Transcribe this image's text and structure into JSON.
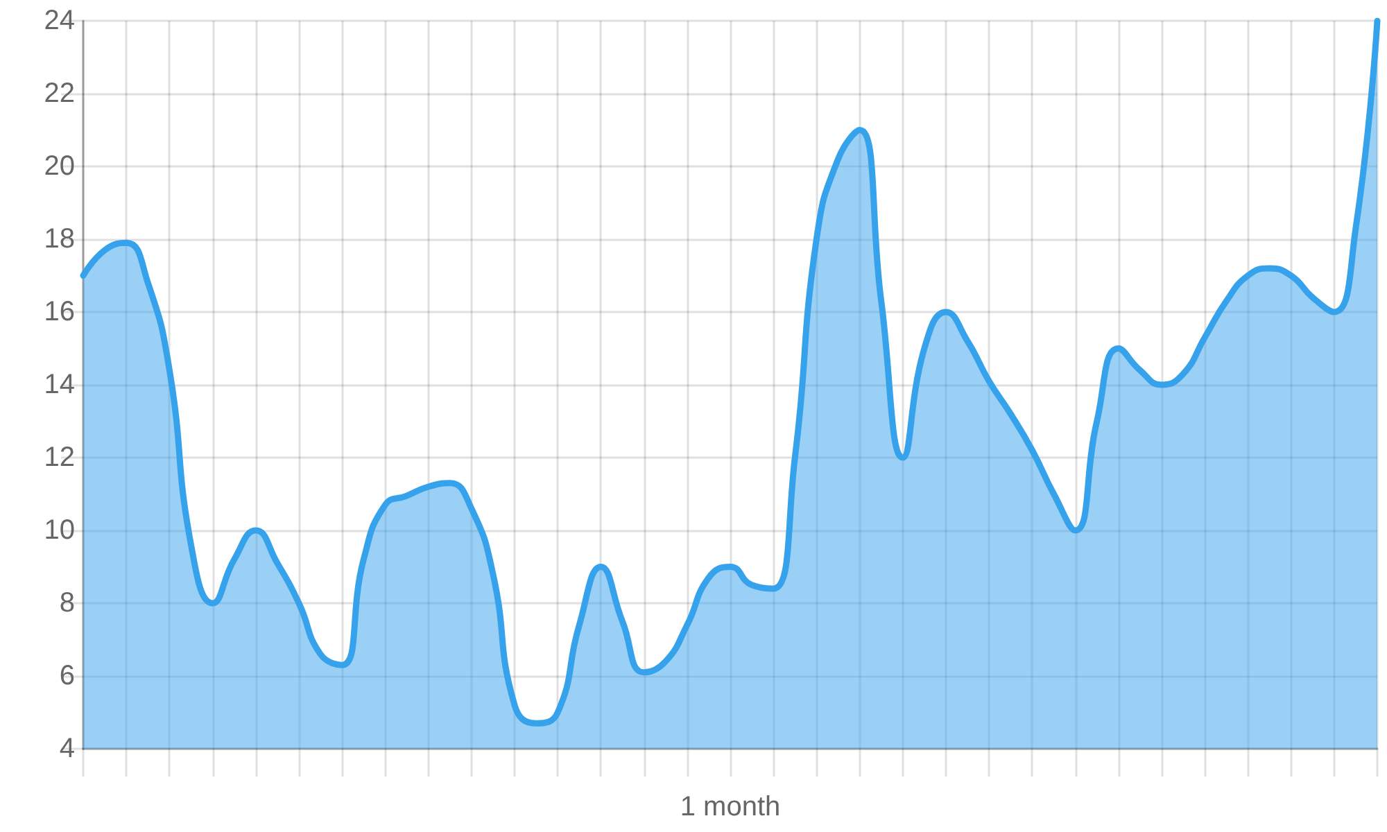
{
  "chart_data": {
    "type": "area",
    "xlabel": "1 month",
    "categories": [
      null,
      null,
      null,
      null,
      null,
      null,
      null,
      null,
      null,
      null,
      null,
      null,
      null,
      null,
      null,
      null,
      null,
      null,
      null,
      null,
      null,
      null,
      null,
      null,
      null,
      null,
      null,
      null,
      null,
      null,
      null,
      null,
      null,
      null,
      null,
      null,
      null,
      null,
      null,
      null,
      null,
      null,
      null,
      null,
      null,
      null,
      null,
      null,
      null,
      null,
      null,
      null,
      null,
      null,
      null,
      null,
      null,
      null,
      null,
      null,
      null
    ],
    "values": [
      17,
      17.7,
      17.9,
      16.8,
      14.4,
      9.6,
      8,
      9.2,
      10,
      9.1,
      8,
      6.6,
      6.3,
      9.2,
      10.7,
      10.95,
      11.2,
      11.3,
      10.6,
      8.8,
      5.2,
      4.7,
      5,
      7.4,
      9,
      7.5,
      6.1,
      6.4,
      7.4,
      8.7,
      9,
      8.5,
      8.4,
      12,
      18,
      20.2,
      21,
      16.3,
      12,
      15,
      16,
      15.2,
      14.1,
      13.2,
      12.2,
      11,
      10,
      13,
      15,
      14.4,
      14,
      14.3,
      15.3,
      16.3,
      17,
      17.2,
      17,
      16.4,
      16,
      18.3,
      24
    ],
    "color": "#36a2eb",
    "ylim": [
      4,
      24
    ],
    "yticks": [
      4,
      6,
      8,
      10,
      12,
      14,
      16,
      18,
      20,
      22,
      24
    ],
    "grid": true,
    "tick_labels": "y",
    "marker": "none",
    "line_style": "solid"
  }
}
